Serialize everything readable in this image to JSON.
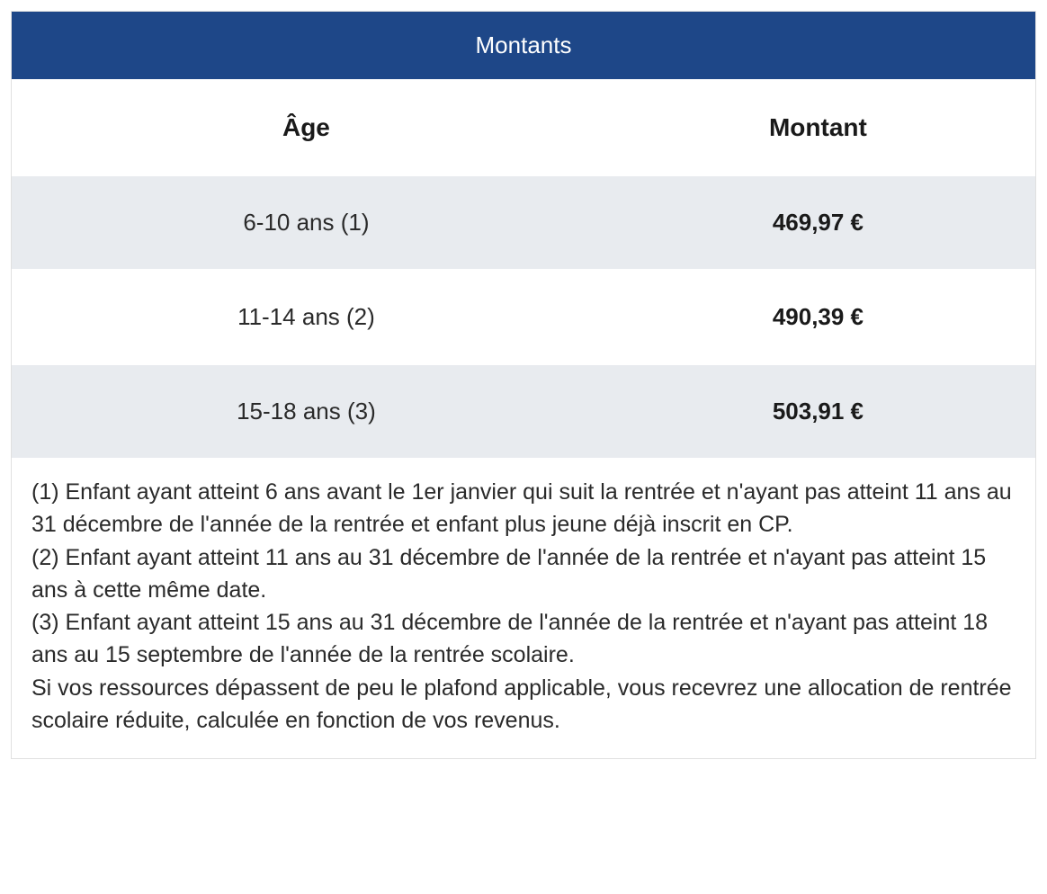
{
  "title": "Montants",
  "columns": {
    "age": "Âge",
    "amount": "Montant"
  },
  "rows": [
    {
      "age": "6-10 ans (1)",
      "amount": "469,97 €"
    },
    {
      "age": "11-14 ans (2)",
      "amount": "490,39 €"
    },
    {
      "age": "15-18 ans (3)",
      "amount": "503,91 €"
    }
  ],
  "notes": {
    "n1": "(1) Enfant ayant atteint 6 ans avant le 1er janvier qui suit la rentrée et n'ayant pas atteint 11 ans au 31 décembre de l'année de la rentrée et enfant plus jeune déjà inscrit en CP.",
    "n2": "(2) Enfant ayant atteint 11 ans au 31 décembre de l'année de la rentrée et n'ayant pas atteint 15 ans à cette même date.",
    "n3": "(3) Enfant ayant atteint 15 ans au 31 décembre de l'année de la rentrée et n'ayant pas atteint 18 ans au 15 septembre de l'année de la rentrée scolaire.",
    "n4": "Si vos ressources dépassent de peu le plafond applicable, vous recevrez une allocation de rentrée scolaire réduite, calculée en fonction de vos revenus."
  },
  "styles": {
    "header_bg": "#1e4788",
    "header_text": "#ffffff",
    "alt_row_bg": "#e8ebef",
    "normal_row_bg": "#ffffff",
    "text_color": "#2a2a2a",
    "title_fontsize": 26,
    "th_fontsize": 28,
    "td_fontsize": 26,
    "notes_fontsize": 25
  }
}
